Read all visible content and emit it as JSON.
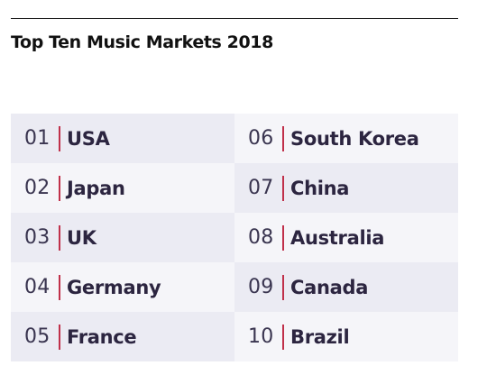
{
  "title": "Top Ten Music Markets 2018",
  "colors": {
    "separator": "#c0304a",
    "rank_text": "#3a3550",
    "country_text": "#2c2540",
    "row_shade_dark": "#ebebf3",
    "row_shade_light": "#f5f5f9"
  },
  "markets": [
    {
      "rank": "01",
      "country": "USA"
    },
    {
      "rank": "02",
      "country": "Japan"
    },
    {
      "rank": "03",
      "country": "UK"
    },
    {
      "rank": "04",
      "country": "Germany"
    },
    {
      "rank": "05",
      "country": "France"
    },
    {
      "rank": "06",
      "country": "South Korea"
    },
    {
      "rank": "07",
      "country": "China"
    },
    {
      "rank": "08",
      "country": "Australia"
    },
    {
      "rank": "09",
      "country": "Canada"
    },
    {
      "rank": "10",
      "country": "Brazil"
    }
  ]
}
